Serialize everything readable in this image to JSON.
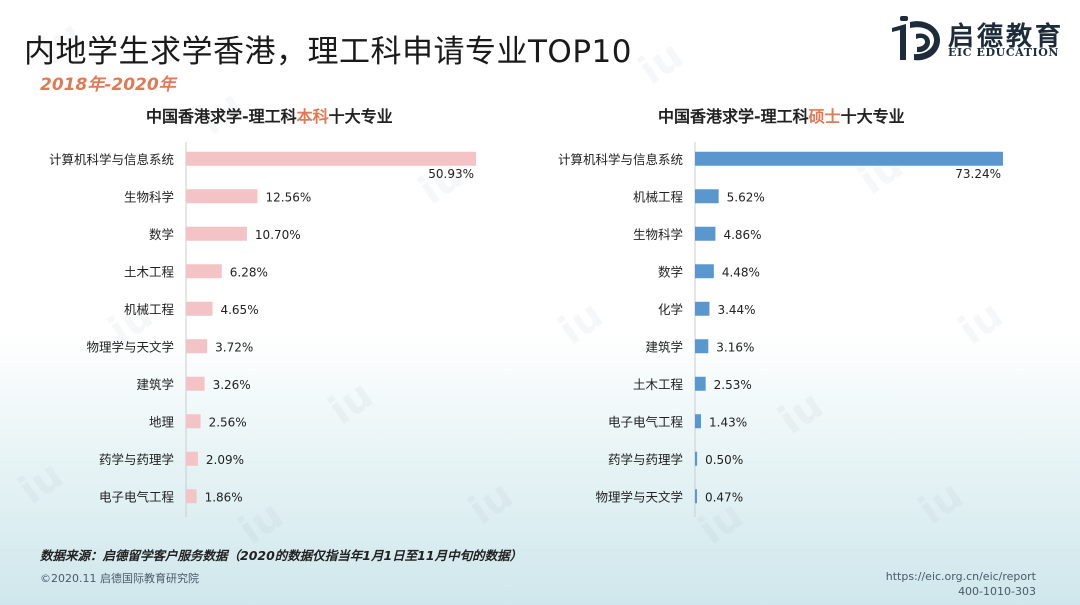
{
  "header": {
    "title": "内地学生求学香港，理工科申请专业TOP10",
    "years": "2018年-2020年"
  },
  "brand": {
    "logo_cn": "启德教育",
    "logo_en": "EIC EDUCATION"
  },
  "footer": {
    "source": "数据来源：启德留学客户服务数据（2020的数据仅指当年1月1日至11月中旬的数据）",
    "copyright": "©2020.11 启德国际教育研究院",
    "url": "https://eic.org.cn/eic/report",
    "phone": "400-1010-303"
  },
  "chart_data": [
    {
      "type": "bar",
      "orientation": "horizontal",
      "title_parts": [
        "中国香港求学-理工科",
        "本科",
        "十大专业"
      ],
      "categories": [
        "计算机科学与信息系统",
        "生物科学",
        "数学",
        "土木工程",
        "机械工程",
        "物理学与天文学",
        "建筑学",
        "地理",
        "药学与药理学",
        "电子电气工程"
      ],
      "values": [
        50.93,
        12.56,
        10.7,
        6.28,
        4.65,
        3.72,
        3.26,
        2.56,
        2.09,
        1.86
      ],
      "labels": [
        "50.93%",
        "12.56%",
        "10.70%",
        "6.28%",
        "4.65%",
        "3.72%",
        "3.26%",
        "2.56%",
        "2.09%",
        "1.86%"
      ],
      "unit": "%",
      "color": "#f4c3c6",
      "xlim": [
        0,
        50.93
      ]
    },
    {
      "type": "bar",
      "orientation": "horizontal",
      "title_parts": [
        "中国香港求学-理工科",
        "硕士",
        "十大专业"
      ],
      "categories": [
        "计算机科学与信息系统",
        "机械工程",
        "生物科学",
        "数学",
        "化学",
        "建筑学",
        "土木工程",
        "电子电气工程",
        "药学与药理学",
        "物理学与天文学"
      ],
      "values": [
        73.24,
        5.62,
        4.86,
        4.48,
        3.44,
        3.16,
        2.53,
        1.43,
        0.5,
        0.47
      ],
      "labels": [
        "73.24%",
        "5.62%",
        "4.86%",
        "4.48%",
        "3.44%",
        "3.16%",
        "2.53%",
        "1.43%",
        "0.50%",
        "0.47%"
      ],
      "unit": "%",
      "color": "#5a97cf",
      "xlim": [
        0,
        73.24
      ]
    }
  ],
  "colors": {
    "accent": "#e07a55",
    "bar_left": "#f4c3c6",
    "bar_right": "#5a97cf",
    "logo": "#1d2b3a"
  }
}
